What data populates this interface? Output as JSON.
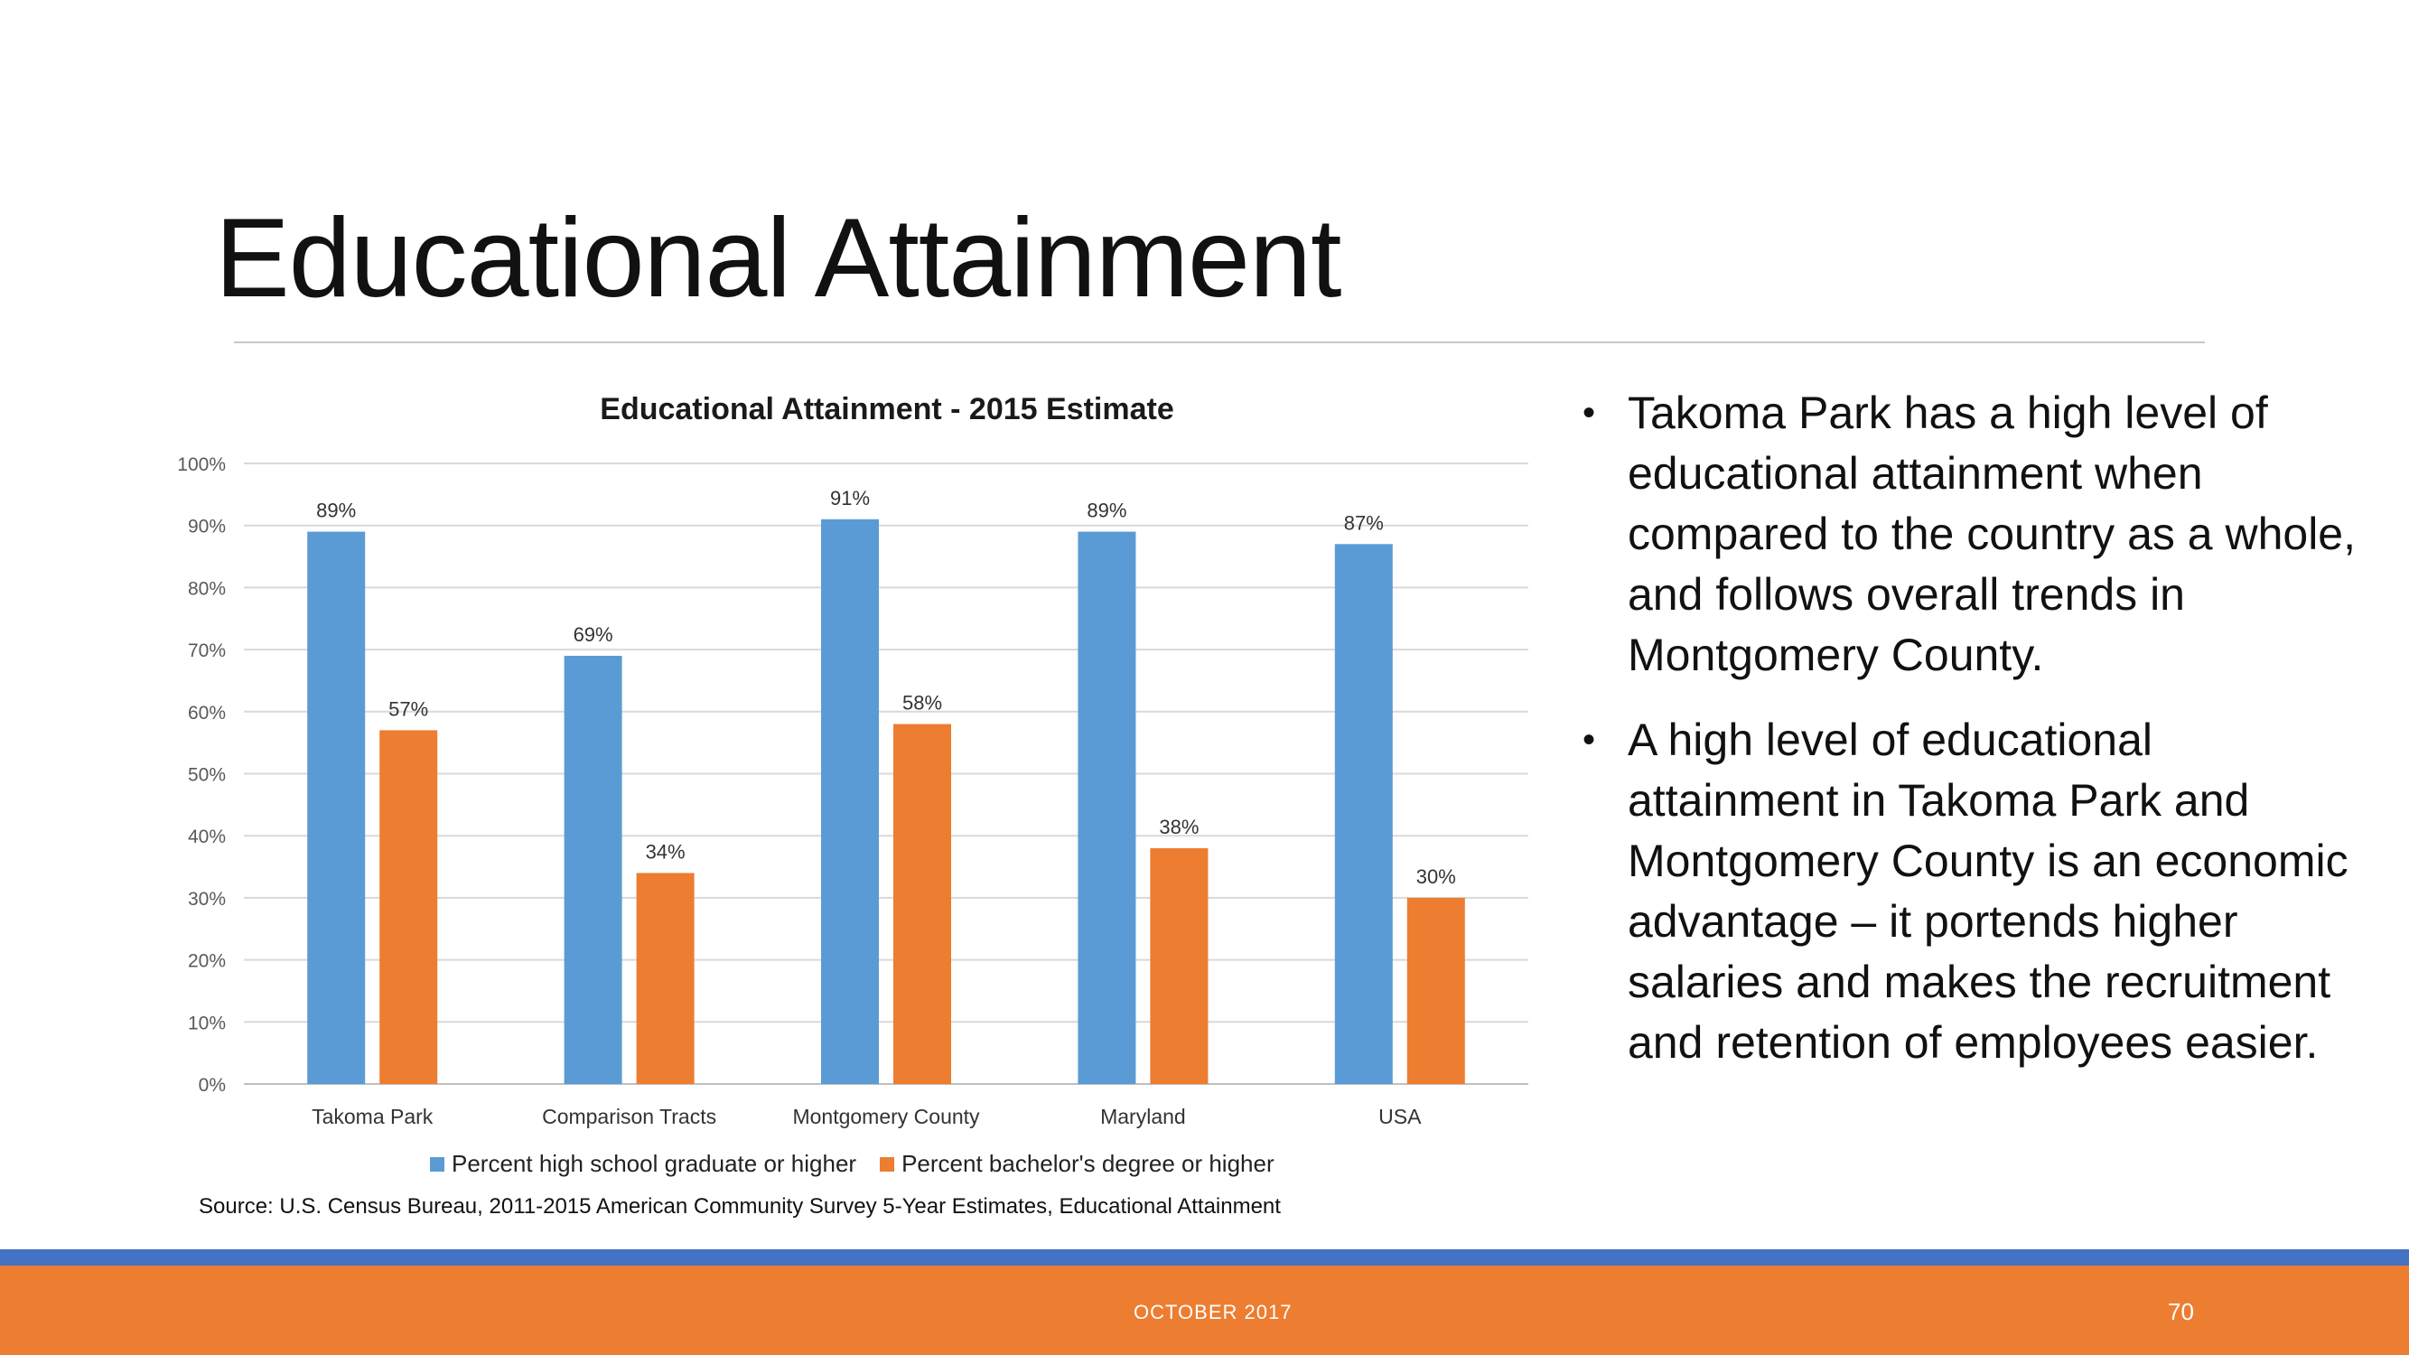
{
  "slide": {
    "title": "Educational Attainment",
    "bullets": [
      "Takoma Park has a high level of educational attainment when compared to the country as a whole, and follows overall trends in Montgomery County.",
      "A high level of educational attainment in Takoma Park and Montgomery County is an economic advantage – it portends higher salaries and makes the recruitment and retention of employees easier."
    ],
    "source": "Source: U.S. Census Bureau, 2011-2015 American Community Survey 5-Year Estimates, Educational Attainment"
  },
  "footer": {
    "date": "OCTOBER 2017",
    "page": "70",
    "colors": {
      "band": "#4472c4",
      "bar": "#ed7d31"
    }
  },
  "chart_data": {
    "type": "bar",
    "title": "Educational Attainment - 2015 Estimate",
    "xlabel": "",
    "ylabel": "",
    "categories": [
      "Takoma Park",
      "Comparison Tracts",
      "Montgomery County",
      "Maryland",
      "USA"
    ],
    "series": [
      {
        "name": "Percent high school graduate or higher",
        "values": [
          89,
          69,
          91,
          89,
          87
        ],
        "labels": [
          "89%",
          "69%",
          "91%",
          "89%",
          "87%"
        ],
        "color": "#5b9bd5"
      },
      {
        "name": "Percent bachelor's degree or higher",
        "values": [
          57,
          34,
          58,
          38,
          30
        ],
        "labels": [
          "57%",
          "34%",
          "58%",
          "38%",
          "30%"
        ],
        "color": "#ed7d31"
      }
    ],
    "ylim": [
      0,
      100
    ],
    "yticks": [
      "0%",
      "10%",
      "20%",
      "30%",
      "40%",
      "50%",
      "60%",
      "70%",
      "80%",
      "90%",
      "100%"
    ],
    "grid": true,
    "legend_position": "bottom"
  }
}
